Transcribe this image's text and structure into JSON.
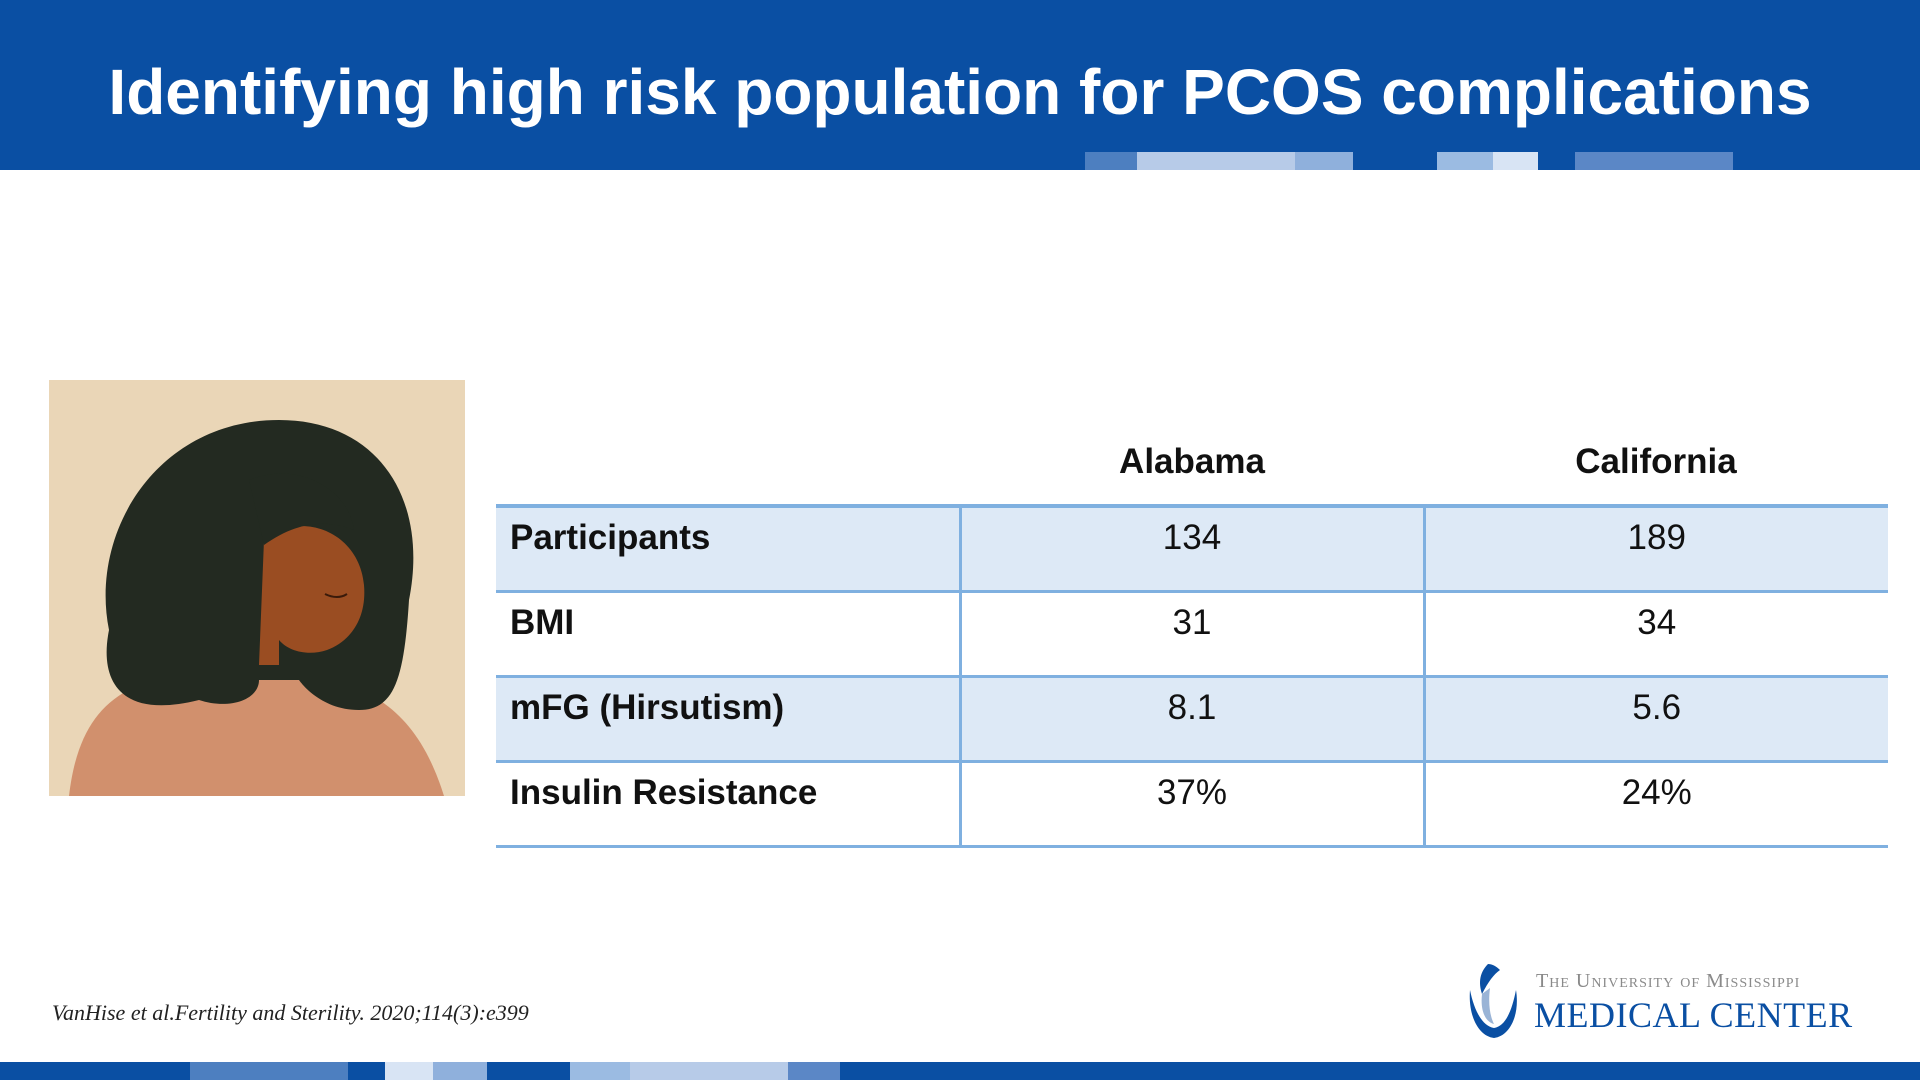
{
  "slide": {
    "title": "Identifying high risk population for PCOS complications",
    "citation": "VanHise et al.Fertility and Sterility. 2020;114(3):e399"
  },
  "table": {
    "columns": [
      "",
      "Alabama",
      "California"
    ],
    "rows": [
      {
        "label": "Participants",
        "alabama": "134",
        "california": "189"
      },
      {
        "label": "BMI",
        "alabama": "31",
        "california": "34"
      },
      {
        "label": "mFG (Hirsutism)",
        "alabama": "8.1",
        "california": "5.6"
      },
      {
        "label": "Insulin Resistance",
        "alabama": "37%",
        "california": "24%"
      }
    ]
  },
  "logo": {
    "line1": "The University of Mississippi",
    "line2": "MEDICAL CENTER"
  },
  "colors": {
    "brand_blue": "#0a4fa3",
    "table_shade": "#dde9f6",
    "table_rule": "#7fb0e0"
  }
}
